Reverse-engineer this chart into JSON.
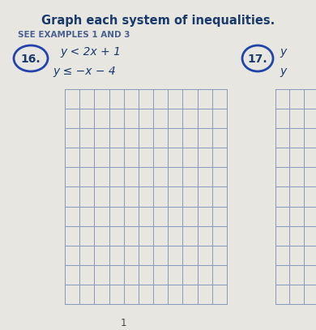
{
  "title": "Graph each system of inequalities.",
  "subtitle": "SEE EXAMPLES 1 AND 3",
  "problem16_label": "16.",
  "problem16_ineq1": "y < 2x + 1",
  "problem16_ineq2": "y ≤ −x − 4",
  "problem17_label": "17.",
  "problem17_y1": "y",
  "problem17_y2": "y",
  "background_color": "#e8e6e0",
  "grid_color": "#8899bb",
  "text_color_title": "#1a3a6b",
  "text_color_subtitle": "#4a6090",
  "circle_color": "#2244aa",
  "grid_rows": 11,
  "grid_cols": 11,
  "footnote": "1"
}
